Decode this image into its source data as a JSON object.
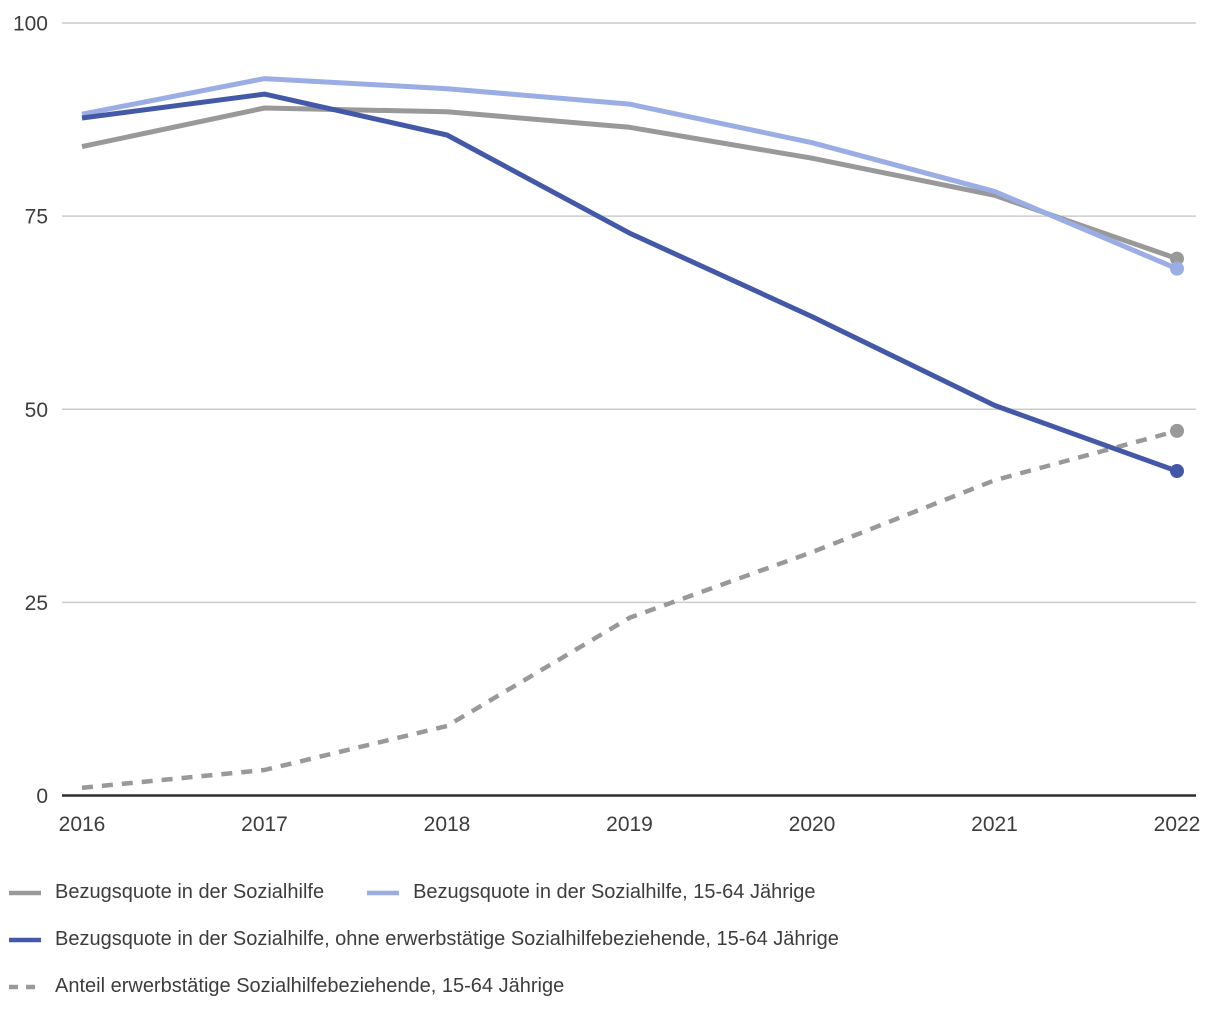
{
  "chart_data": {
    "type": "line",
    "x_labels": [
      "2016",
      "2017",
      "2018",
      "2019",
      "2020",
      "2021",
      "2022"
    ],
    "y_ticks": [
      0,
      25,
      50,
      75,
      100
    ],
    "ylim": [
      0,
      100
    ],
    "grid": true,
    "legend_position": "bottom",
    "end_markers": true,
    "series": [
      {
        "name": "Bezugsquote in der Sozialhilfe",
        "color": "#999999",
        "style": "solid",
        "values": [
          84,
          89,
          88.5,
          86.5,
          82.5,
          77.7,
          69.5
        ]
      },
      {
        "name": "Bezugsquote in der Sozialhilfe, 15-64 Jährige",
        "color": "#9aade4",
        "style": "solid",
        "values": [
          88.2,
          92.8,
          91.5,
          89.5,
          84.5,
          78.2,
          68.2
        ]
      },
      {
        "name": "Bezugsquote in der Sozialhilfe, ohne erwerbstätige Sozialhilfebeziehende, 15-64 Jährige",
        "color": "#4458a8",
        "style": "solid",
        "values": [
          87.7,
          90.8,
          85.5,
          72.8,
          62,
          50.5,
          42
        ]
      },
      {
        "name": "Anteil erwerbstätige Sozialhilfebeziehende, 15-64 Jährige",
        "color": "#999999",
        "style": "dashed",
        "values": [
          1,
          3.3,
          9,
          23,
          31.5,
          40.8,
          47.2
        ]
      }
    ],
    "legend_rows": [
      [
        0,
        1
      ],
      [
        2
      ],
      [
        3
      ]
    ],
    "draw_order": [
      0,
      1,
      3,
      2
    ]
  },
  "colors": {
    "background": "#ffffff",
    "grid": "#cccccc",
    "axis": "#2e2e2e",
    "tick_text": "#3d3d3d"
  }
}
